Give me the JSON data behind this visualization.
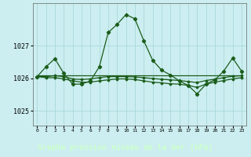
{
  "title": "Graphe pression niveau de la mer (hPa)",
  "x_labels": [
    "0",
    "1",
    "2",
    "3",
    "4",
    "5",
    "6",
    "7",
    "8",
    "9",
    "10",
    "11",
    "12",
    "13",
    "14",
    "15",
    "16",
    "17",
    "18",
    "19",
    "20",
    "21",
    "22",
    "23"
  ],
  "ylim": [
    1024.55,
    1028.3
  ],
  "yticks": [
    1025,
    1026,
    1027
  ],
  "background_color": "#cceef0",
  "plot_bg_color": "#cceef0",
  "line_color": "#1a5c1a",
  "grid_color": "#aad8db",
  "title_bg_color": "#2d6e2d",
  "title_text_color": "#ccffcc",
  "series1": [
    1026.05,
    1026.35,
    1026.6,
    1026.15,
    1025.82,
    1025.82,
    1025.92,
    1026.35,
    1027.4,
    1027.65,
    1027.95,
    1027.82,
    1027.15,
    1026.55,
    1026.25,
    1026.1,
    1025.92,
    1025.78,
    1025.52,
    1025.82,
    1025.95,
    1026.22,
    1026.62,
    1026.22
  ],
  "series2": [
    1026.08,
    1026.08,
    1026.08,
    1026.08,
    1026.08,
    1026.08,
    1026.08,
    1026.08,
    1026.08,
    1026.08,
    1026.08,
    1026.08,
    1026.08,
    1026.08,
    1026.08,
    1026.08,
    1026.08,
    1026.08,
    1026.08,
    1026.08,
    1026.08,
    1026.08,
    1026.08,
    1026.08
  ],
  "series3": [
    1026.05,
    1026.05,
    1026.08,
    1026.05,
    1025.98,
    1025.96,
    1025.98,
    1026.02,
    1026.05,
    1026.05,
    1026.05,
    1026.04,
    1026.02,
    1025.99,
    1025.97,
    1025.95,
    1025.93,
    1025.9,
    1025.87,
    1025.93,
    1025.97,
    1026.02,
    1026.06,
    1026.08
  ],
  "series4": [
    1026.05,
    1026.02,
    1026.02,
    1025.98,
    1025.92,
    1025.88,
    1025.88,
    1025.92,
    1025.95,
    1025.98,
    1025.98,
    1025.96,
    1025.92,
    1025.88,
    1025.86,
    1025.83,
    1025.82,
    1025.78,
    1025.72,
    1025.82,
    1025.88,
    1025.93,
    1025.98,
    1026.02
  ]
}
